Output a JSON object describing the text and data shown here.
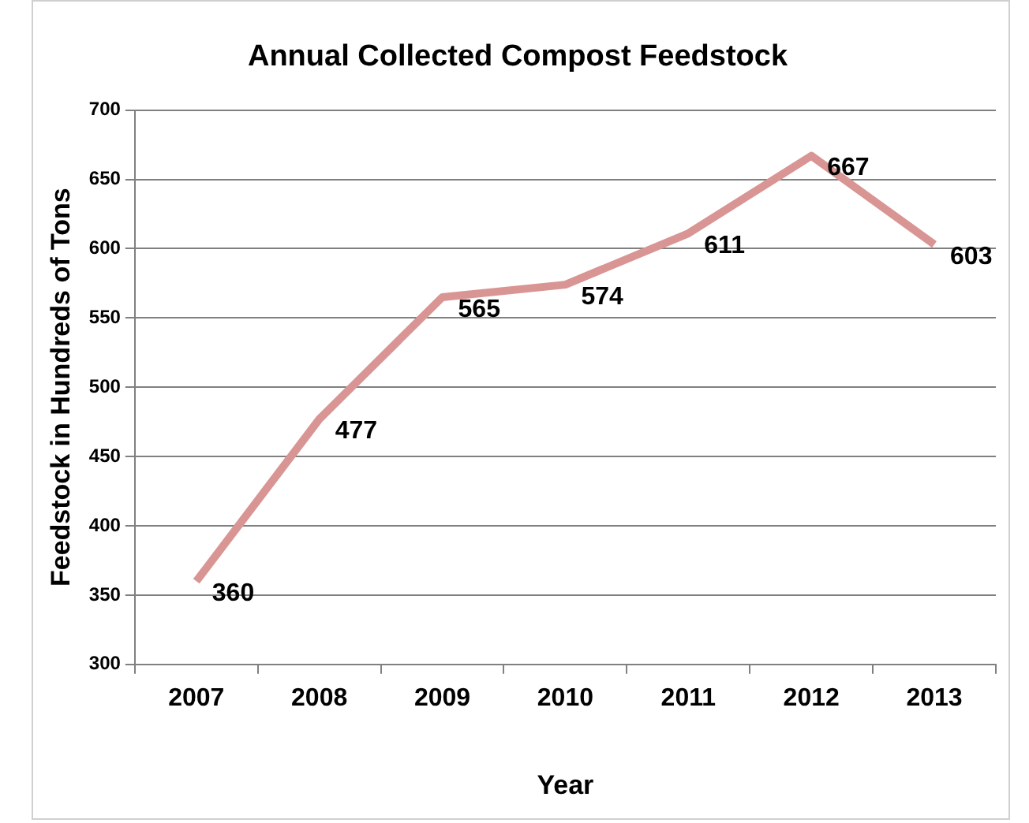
{
  "chart_data": {
    "type": "line",
    "title": "Annual Collected Compost Feedstock",
    "xlabel": "Year",
    "ylabel": "Feedstock in Hundreds of Tons",
    "categories": [
      "2007",
      "2008",
      "2009",
      "2010",
      "2011",
      "2012",
      "2013"
    ],
    "series": [
      {
        "color": "#d99594",
        "values": [
          360,
          477,
          565,
          574,
          611,
          667,
          603
        ]
      }
    ],
    "ylim": [
      300,
      700
    ],
    "yticks": [
      300,
      350,
      400,
      450,
      500,
      550,
      600,
      650,
      700
    ],
    "grid": "y",
    "legend": false,
    "marker": "none",
    "data_labels": true
  }
}
